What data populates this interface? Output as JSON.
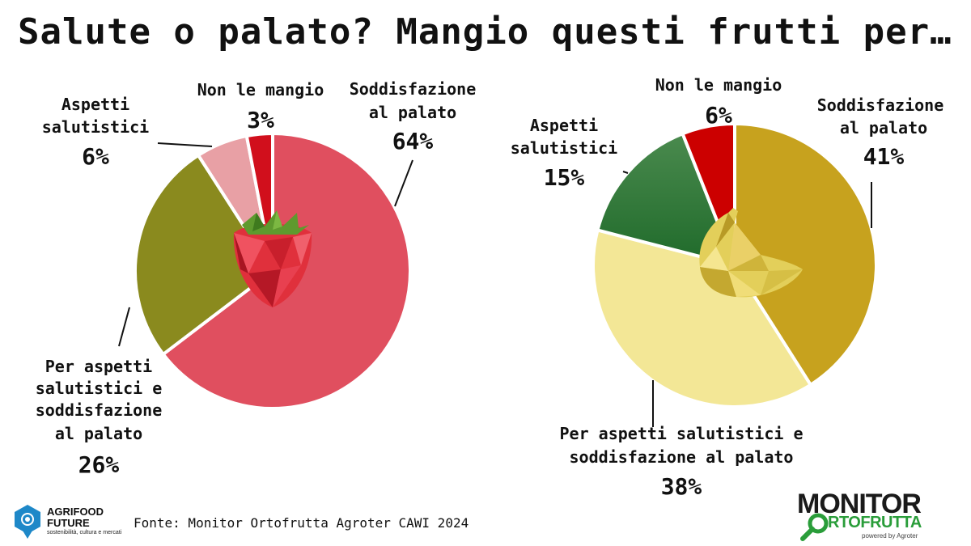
{
  "title": "Salute o palato? Mangio questi frutti per…",
  "source": "Fonte: Monitor Ortofrutta Agroter CAWI 2024",
  "logos": {
    "agrifood_line1": "AGRIFOOD",
    "agrifood_line2": "FUTURE",
    "agrifood_tagline": "sostenibilità, cultura e mercati",
    "monitor_line1": "MONITOR",
    "monitor_line2": "RTOFRUTTA",
    "monitor_powered": "powered by Agroter"
  },
  "chart_data": [
    {
      "type": "pie",
      "fruit": "strawberry-icon",
      "title": "",
      "series": [
        {
          "label": "Soddisfazione al palato",
          "value": 64,
          "display": "64%",
          "color": "#e04f5f"
        },
        {
          "label": "Per aspetti salutistici e soddisfazione al palato",
          "value": 26,
          "display": "26%",
          "color": "#8a8a1e"
        },
        {
          "label": "Aspetti salutistici",
          "value": 6,
          "display": "6%",
          "color": "#e8a0a5"
        },
        {
          "label": "Non le mangio",
          "value": 3,
          "display": "3%",
          "color": "#d10f1c"
        }
      ]
    },
    {
      "type": "pie",
      "fruit": "banana-icon",
      "title": "",
      "series": [
        {
          "label": "Soddisfazione al palato",
          "value": 41,
          "display": "41%",
          "color": "#c7a21e"
        },
        {
          "label": "Per aspetti salutistici e soddisfazione al palato",
          "value": 38,
          "display": "38%",
          "color": "#f3e796"
        },
        {
          "label": "Aspetti salutistici",
          "value": 15,
          "display": "15%",
          "color": "#2a7a34"
        },
        {
          "label": "Non le mangio",
          "value": 6,
          "display": "6%",
          "color": "#cc0000"
        }
      ]
    }
  ],
  "labels": {
    "left": {
      "palato_1": "Soddisfazione",
      "palato_2": "al palato",
      "entrambi_1": "Per aspetti",
      "entrambi_2": "salutistici e",
      "entrambi_3": "soddisfazione",
      "entrambi_4": "al palato",
      "salute_1": "Aspetti",
      "salute_2": "salutistici",
      "non_1": "Non le mangio"
    },
    "right": {
      "palato_1": "Soddisfazione",
      "palato_2": "al palato",
      "entrambi_1": "Per aspetti salutistici e",
      "entrambi_2": "soddisfazione al palato",
      "salute_1": "Aspetti",
      "salute_2": "salutistici",
      "non_1": "Non le mangio"
    }
  }
}
